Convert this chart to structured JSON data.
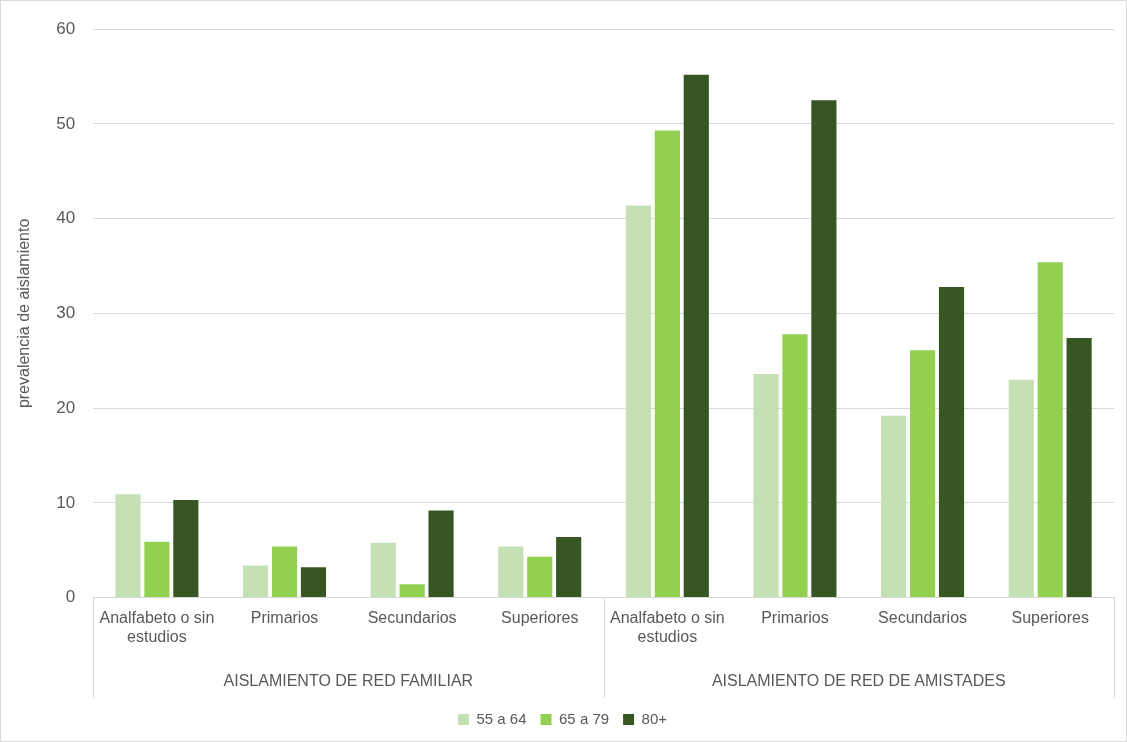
{
  "chart_data": {
    "type": "bar",
    "ylabel": "prevalencia de aislamiento",
    "categories": [
      "Analfabeto o sin estudios",
      "Primarios",
      "Secundarios",
      "Superiores",
      "Analfabeto o sin estudios",
      "Primarios",
      "Secundarios",
      "Superiores"
    ],
    "annotations": [
      "AISLAMIENTO DE RED FAMILIAR",
      "AISLAMIENTO DE RED DE AMISTADES"
    ],
    "series": [
      {
        "name": "55 a 64",
        "color": "#c5e0b4",
        "values": [
          10.9,
          3.4,
          5.8,
          5.4,
          41.4,
          23.6,
          19.2,
          23.0
        ]
      },
      {
        "name": "65 a 79",
        "color": "#92d050",
        "values": [
          5.9,
          5.4,
          1.4,
          4.3,
          49.3,
          27.8,
          26.1,
          35.4
        ]
      },
      {
        "name": "80+",
        "color": "#375623",
        "values": [
          10.3,
          3.2,
          9.2,
          6.4,
          55.2,
          52.5,
          32.8,
          27.4
        ]
      }
    ],
    "ylim": [
      0,
      60
    ],
    "yticks": [
      0,
      10,
      20,
      30,
      40,
      50,
      60
    ],
    "grid": "y",
    "legend": "bottom"
  }
}
